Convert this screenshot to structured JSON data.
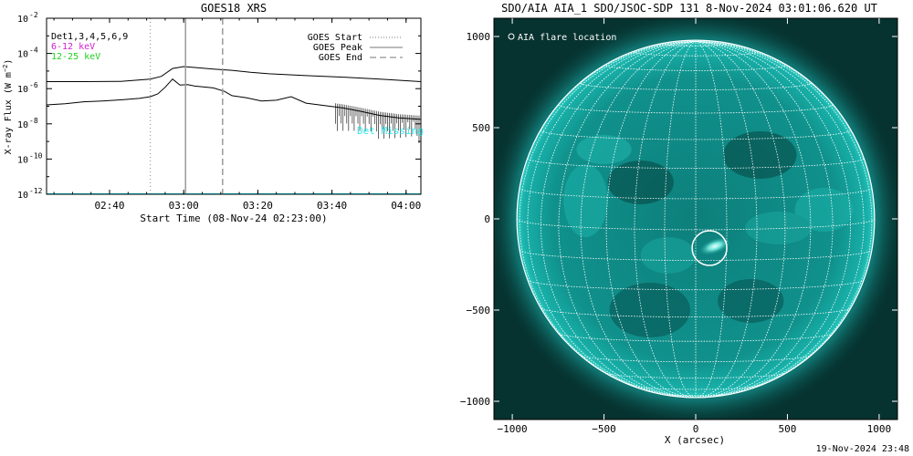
{
  "chart_data": [
    {
      "type": "line",
      "title": "GOES18 XRS",
      "xlabel": "Start Time (08-Nov-24 02:23:00)",
      "ylabel": "X-ray Flux (W m^-2)",
      "y_scale": "log",
      "ylim": [
        1e-12,
        0.01
      ],
      "x_range_minutes_after_start": [
        0,
        101
      ],
      "x_ticks": [
        {
          "label": "02:40",
          "minutes_after_start": 17
        },
        {
          "label": "03:00",
          "minutes_after_start": 37
        },
        {
          "label": "03:20",
          "minutes_after_start": 57
        },
        {
          "label": "03:40",
          "minutes_after_start": 77
        },
        {
          "label": "04:00",
          "minutes_after_start": 97
        }
      ],
      "y_ticks": [
        {
          "label": "10",
          "exp": "-2",
          "value": 0.01
        },
        {
          "label": "10",
          "exp": "-4",
          "value": 0.0001
        },
        {
          "label": "10",
          "exp": "-6",
          "value": 1e-06
        },
        {
          "label": "10",
          "exp": "-8",
          "value": 1e-08
        },
        {
          "label": "10",
          "exp": "-10",
          "value": 1e-10
        },
        {
          "label": "10",
          "exp": "-12",
          "value": 1e-12
        }
      ],
      "legend_left": [
        {
          "label": "Det1,3,4,5,6,9",
          "color": "#000000"
        },
        {
          "label": "6-12 keV",
          "color": "#d020d0"
        },
        {
          "label": "12-25 keV",
          "color": "#20d020"
        }
      ],
      "legend_right": [
        {
          "label": "GOES Start",
          "style": "dotted"
        },
        {
          "label": "GOES Peak",
          "style": "solid"
        },
        {
          "label": "GOES End",
          "style": "dashed"
        }
      ],
      "annotation": "Det Missing",
      "event_lines_minutes_after_start": {
        "start": 28,
        "peak": 37.5,
        "end": 47.5
      },
      "series": [
        {
          "color": "#000000",
          "values_minutes_flux": [
            [
              0,
              2.5e-06
            ],
            [
              10,
              2.5e-06
            ],
            [
              20,
              2.6e-06
            ],
            [
              28,
              3.5e-06
            ],
            [
              31,
              5e-06
            ],
            [
              34,
              1.4e-05
            ],
            [
              37,
              1.8e-05
            ],
            [
              40,
              1.6e-05
            ],
            [
              45,
              1.3e-05
            ],
            [
              50,
              1.1e-05
            ],
            [
              55,
              8.5e-06
            ],
            [
              60,
              7e-06
            ],
            [
              70,
              5.5e-06
            ],
            [
              80,
              4.5e-06
            ],
            [
              90,
              3.5e-06
            ],
            [
              101,
              2.5e-06
            ]
          ]
        },
        {
          "color": "#000000",
          "values_minutes_flux": [
            [
              0,
              1.2e-07
            ],
            [
              5,
              1.4e-07
            ],
            [
              10,
              1.8e-07
            ],
            [
              15,
              2e-07
            ],
            [
              20,
              2.3e-07
            ],
            [
              25,
              2.8e-07
            ],
            [
              28,
              3.5e-07
            ],
            [
              30,
              5e-07
            ],
            [
              32,
              1.2e-06
            ],
            [
              34,
              3.5e-06
            ],
            [
              36,
              1.6e-06
            ],
            [
              38,
              1.7e-06
            ],
            [
              40,
              1.4e-06
            ],
            [
              45,
              1.1e-06
            ],
            [
              48,
              7e-07
            ],
            [
              50,
              4e-07
            ],
            [
              54,
              3e-07
            ],
            [
              58,
              2e-07
            ],
            [
              62,
              2.2e-07
            ],
            [
              66,
              3.5e-07
            ],
            [
              70,
              1.5e-07
            ],
            [
              75,
              1.1e-07
            ],
            [
              80,
              8e-08
            ],
            [
              85,
              5e-08
            ],
            [
              90,
              3e-08
            ],
            [
              95,
              2.2e-08
            ],
            [
              101,
              1.8e-08
            ]
          ]
        },
        {
          "color": "#00e5ee",
          "values_minutes_flux": [
            [
              0,
              1e-12
            ],
            [
              101,
              1e-12
            ]
          ]
        }
      ]
    },
    {
      "type": "image",
      "title": "SDO/AIA AIA_1 SDO/JSOC-SDP 131  8-Nov-2024 03:01:06.620 UT",
      "xlabel": "X (arcsec)",
      "xlim": [
        -1100,
        1100
      ],
      "ylim": [
        -1100,
        1100
      ],
      "x_ticks": [
        -1000,
        -500,
        0,
        500,
        1000
      ],
      "y_ticks": [
        -1000,
        -500,
        0,
        500,
        1000
      ],
      "legend": [
        {
          "label": "AIA flare location",
          "marker": "circle"
        }
      ],
      "solar_radius_arcsec": 975,
      "grid_spacing_deg": 10,
      "flare_location_arcsec": [
        75,
        -160
      ],
      "colors": {
        "sun": "#0e8a86",
        "bright": "#7ff0e6",
        "dark": "#063a38",
        "grid": "#ffffff"
      }
    }
  ],
  "footer": "19-Nov-2024 23:48"
}
